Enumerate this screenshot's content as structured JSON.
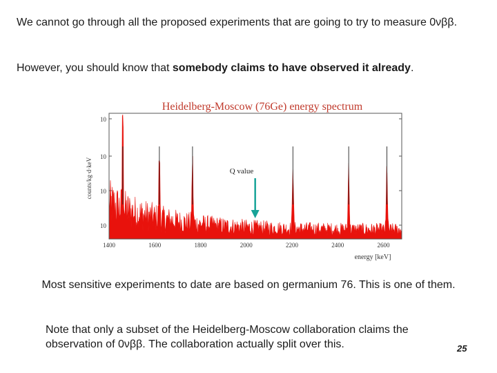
{
  "slide": {
    "intro_line": "We cannot go through all the proposed experiments that are going to try to measure 0νββ.",
    "claim_prefix": "However, you should know that ",
    "claim_bold": "somebody claims to have observed it already",
    "claim_suffix": ".",
    "caption": "Most sensitive experiments to date are based on germanium 76. This is one of them.",
    "note": "Note that only a subset of the Heidelberg-Moscow collaboration claims the observation of 0νββ. The collaboration actually split over this.",
    "page_number": "25"
  },
  "figure": {
    "title": "Heidelberg-Moscow (76Ge) energy spectrum",
    "ylabel": "counts/kg·d·keV",
    "xlabel": "energy [keV]",
    "annotation": "Q value",
    "x_ticks": [
      "1400",
      "1600",
      "1800",
      "2000",
      "2200",
      "2400",
      "2600"
    ],
    "y_ticks": [
      "10",
      "10",
      "10",
      "10"
    ],
    "colors": {
      "spectrum": "#e8120c",
      "title": "#c0392b",
      "arrow": "#17a398"
    }
  },
  "chart_data": {
    "type": "line",
    "title": "Heidelberg-Moscow (76Ge) energy spectrum",
    "xlabel": "energy [keV]",
    "ylabel": "counts/kg·d·keV",
    "xlim": [
      1400,
      2680
    ],
    "y_scale": "log",
    "x_ticks": [
      1400,
      1600,
      1800,
      2000,
      2200,
      2400,
      2600
    ],
    "peaks_keV": [
      1460,
      1620,
      1765,
      2204,
      2448,
      2615
    ],
    "q_value_keV": 2039
  }
}
